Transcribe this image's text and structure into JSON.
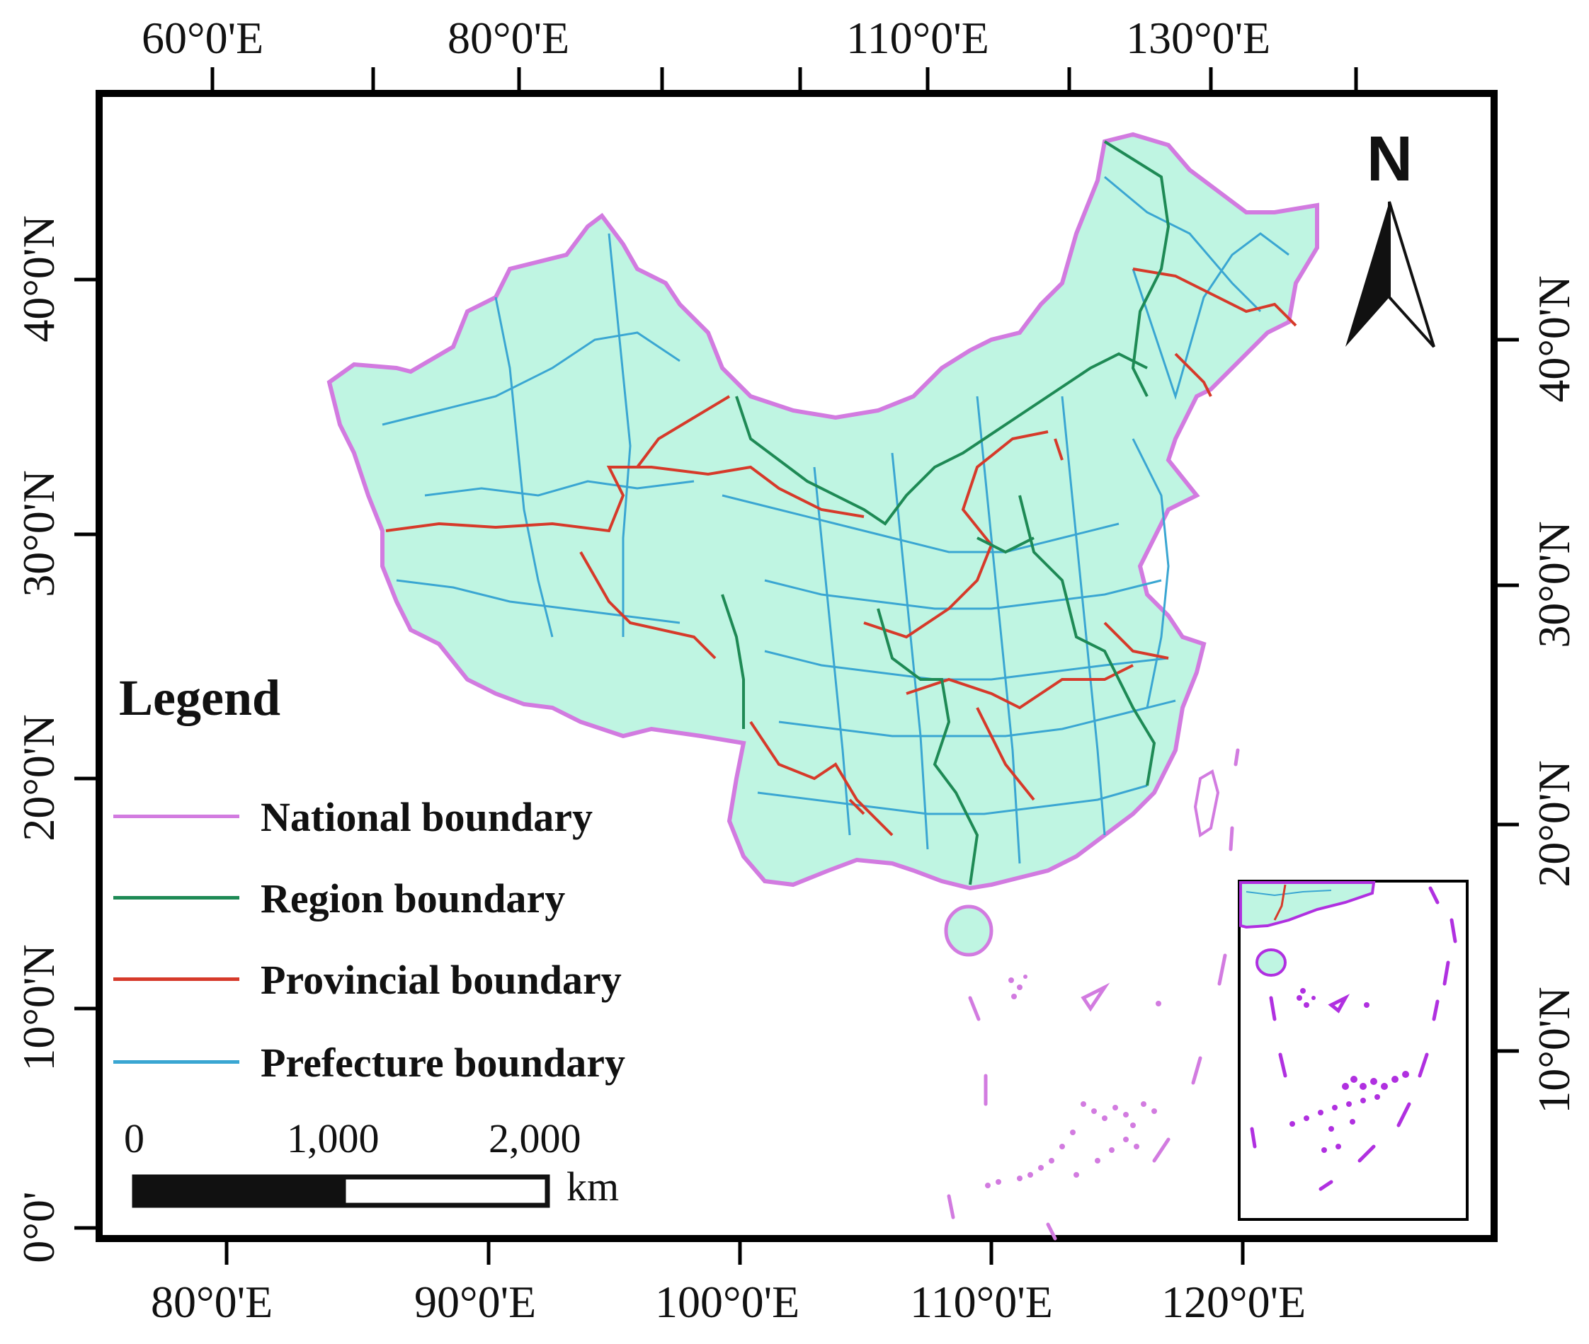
{
  "map": {
    "top_axis_labels": [
      "60°0'E",
      "80°0'E",
      "110°0'E",
      "130°0'E"
    ],
    "bottom_axis_labels": [
      "80°0'E",
      "90°0'E",
      "100°0'E",
      "110°0'E",
      "120°0'E"
    ],
    "left_axis_labels": [
      "40°0'N",
      "30°0'N",
      "20°0'N",
      "10°0'N",
      "0°0'"
    ],
    "right_axis_labels": [
      "40°0'N",
      "30°0'N",
      "20°0'N",
      "10°0'N"
    ],
    "north_arrow_label": "N",
    "colors": {
      "land_fill": "#bff5e2",
      "national_boundary": "#d27be0",
      "region_boundary": "#1e8a55",
      "provincial_boundary": "#d63a2a",
      "prefecture_boundary": "#3aa6d2",
      "inset_boundary": "#b030e0"
    }
  },
  "legend": {
    "title": "Legend",
    "items": [
      {
        "label": "National boundary",
        "color": "#d27be0"
      },
      {
        "label": "Region boundary",
        "color": "#1e8a55"
      },
      {
        "label": "Provincial boundary",
        "color": "#d63a2a"
      },
      {
        "label": "Prefecture boundary",
        "color": "#3aa6d2"
      }
    ]
  },
  "scale_bar": {
    "labels": [
      "0",
      "1,000",
      "2,000"
    ],
    "unit": "km"
  }
}
